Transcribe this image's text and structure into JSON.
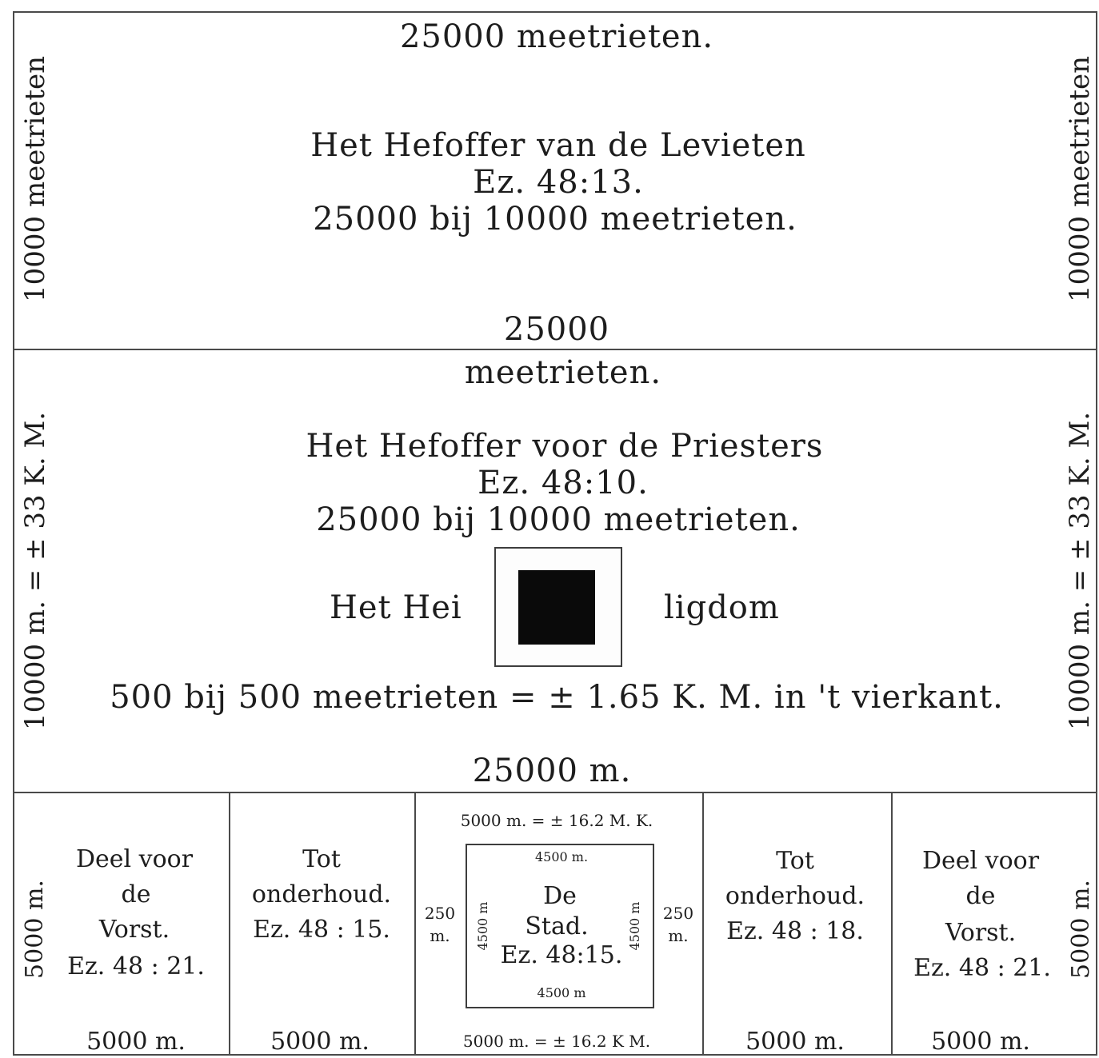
{
  "levites": {
    "top_label": "25000 meetrieten.",
    "title": "Het Hefoffer van de Levieten",
    "reference": "Ez. 48:13.",
    "dimensions": "25000 bij 10000 meetrieten.",
    "side_left": "10000 meetrieten",
    "side_right": "10000 meetrieten",
    "bottom_label": "25000"
  },
  "priests": {
    "top_label": "meetrieten.",
    "title": "Het Hefoffer voor de Priesters",
    "reference": "Ez. 48:10.",
    "dimensions": "25000 bij 10000 meetrieten.",
    "side_left": "10000 m. = ± 33 K. M.",
    "side_right": "10000 m. = ± 33 K. M.",
    "sanctuary_left": "Het Hei",
    "sanctuary_right": "ligdom",
    "sanctuary_size": "500 bij 500 meetrieten = ± 1.65 K. M. in 't vierkant.",
    "bottom_label": "25000 m."
  },
  "bottom_row": {
    "left_side": "5000 m.",
    "right_side": "5000 m.",
    "prince_left": {
      "lines": [
        "Deel voor",
        "de",
        "Vorst.",
        "Ez. 48 : 21."
      ],
      "bottom": "5000 m."
    },
    "maintenance_left": {
      "lines": [
        "Tot",
        "onderhoud.",
        "Ez. 48 : 15."
      ],
      "bottom": "5000 m."
    },
    "city": {
      "top_label": "5000 m. = ± 16.2 M. K.",
      "bottom_label": "5000 m. = ± 16.2 K M.",
      "inner_top": "4500 m.",
      "inner_bottom": "4500 m",
      "inner_left": "4500 m",
      "inner_right": "4500 m",
      "outer_left_top": "250",
      "outer_left_bottom": "m.",
      "outer_right_top": "250",
      "outer_right_bottom": "m.",
      "name_1": "De",
      "name_2": "Stad.",
      "reference": "Ez. 48:15."
    },
    "maintenance_right": {
      "lines": [
        "Tot",
        "onderhoud.",
        "Ez. 48 : 18."
      ],
      "bottom": "5000 m."
    },
    "prince_right": {
      "lines": [
        "Deel voor",
        "de",
        "Vorst.",
        "Ez. 48 : 21."
      ],
      "bottom": "5000 m."
    }
  }
}
